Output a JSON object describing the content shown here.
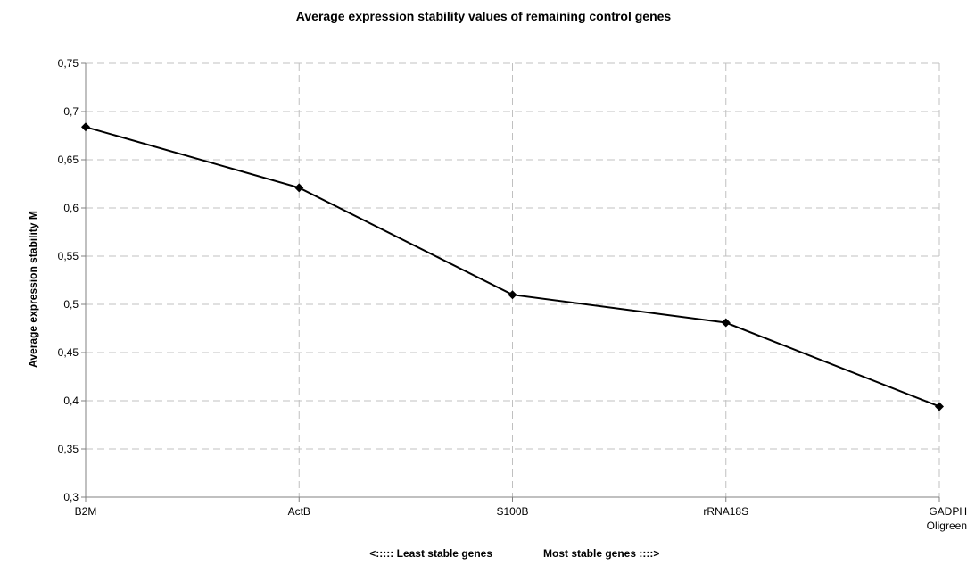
{
  "chart_data": {
    "type": "line",
    "title": "Average expression stability values of remaining control genes",
    "ylabel": "Average expression stability M",
    "xlabel_left": "<:::::  Least stable genes",
    "xlabel_right": "Most stable genes ::::>",
    "categories": [
      "B2M",
      "ActB",
      "S100B",
      "rRNA18S",
      "GADPH\nOligreen"
    ],
    "series": [
      {
        "name": "",
        "values": [
          0.684,
          0.621,
          0.51,
          0.481,
          0.394
        ]
      }
    ],
    "ylim": [
      0.3,
      0.75
    ],
    "yticks": [
      "0,3",
      "0,35",
      "0,4",
      "0,45",
      "0,5",
      "0,55",
      "0,6",
      "0,65",
      "0,7",
      "0,75"
    ],
    "grid": true,
    "marker": "diamond",
    "line_color": "#000000",
    "grid_color": "#c0c0c0"
  }
}
